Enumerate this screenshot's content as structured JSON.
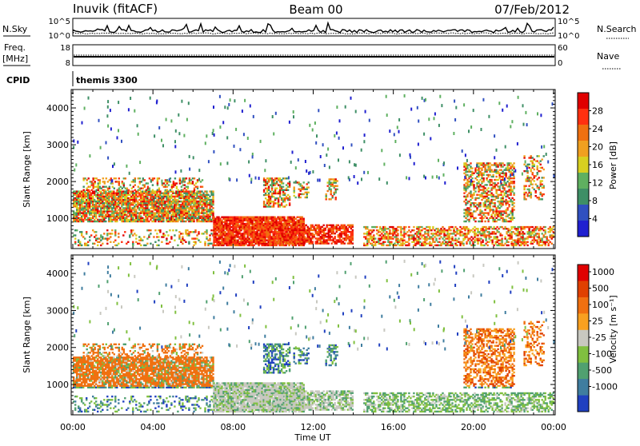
{
  "header": {
    "station": "Inuvik (fitACF)",
    "beam": "Beam 00",
    "date": "07/Feb/2012"
  },
  "strip": {
    "nsky_label": "N.Sky",
    "nsearch_label": "N.Search",
    "nsky_ticks": [
      "10^5",
      "10^0"
    ],
    "nsearch_ticks": [
      "10^5",
      "10^0"
    ],
    "freq_label": "Freq.",
    "freq_unit": "[MHz]",
    "freq_ticks": [
      "18",
      "8"
    ],
    "nave_label": "Nave",
    "nave_ticks": [
      "60",
      "0"
    ],
    "cpid_label": "CPID",
    "cpid_value": "themis 3300"
  },
  "colors": {
    "power_scale": [
      "#2020d0",
      "#3050c0",
      "#3e8f66",
      "#5fb060",
      "#d8d020",
      "#f0a020",
      "#f07010",
      "#ff3010",
      "#e00000"
    ],
    "velocity_scale": [
      "#2040c0",
      "#3f7d9f",
      "#50a070",
      "#80c040",
      "#c8c8c0",
      "#f8a020",
      "#f07010",
      "#e04000",
      "#e00000"
    ],
    "ground_scatter": "#c8c8c0"
  },
  "chart_data": [
    {
      "type": "heatmap",
      "name": "power",
      "ylabel": "Slant Range [km]",
      "yticks": [
        "1000",
        "2000",
        "3000",
        "4000"
      ],
      "ylim": [
        180,
        4500
      ],
      "xlim": [
        0,
        24
      ],
      "colorbar": {
        "label": "Power [dB]",
        "ticks": [
          "4",
          "8",
          "12",
          "16",
          "20",
          "24",
          "28"
        ],
        "range": [
          0,
          32
        ]
      }
    },
    {
      "type": "heatmap",
      "name": "velocity",
      "ylabel": "Slant Range [km]",
      "yticks": [
        "1000",
        "2000",
        "3000",
        "4000"
      ],
      "ylim": [
        180,
        4500
      ],
      "xlim": [
        0,
        24
      ],
      "xlabel": "Time UT",
      "xticks": [
        "00:00",
        "04:00",
        "08:00",
        "12:00",
        "16:00",
        "20:00",
        "00:00"
      ],
      "colorbar": {
        "label": "Velocity [m s⁻¹]",
        "ticks": [
          "1000",
          "500",
          "100",
          "25",
          "-25",
          "-100",
          "-500",
          "-1000"
        ]
      }
    }
  ]
}
